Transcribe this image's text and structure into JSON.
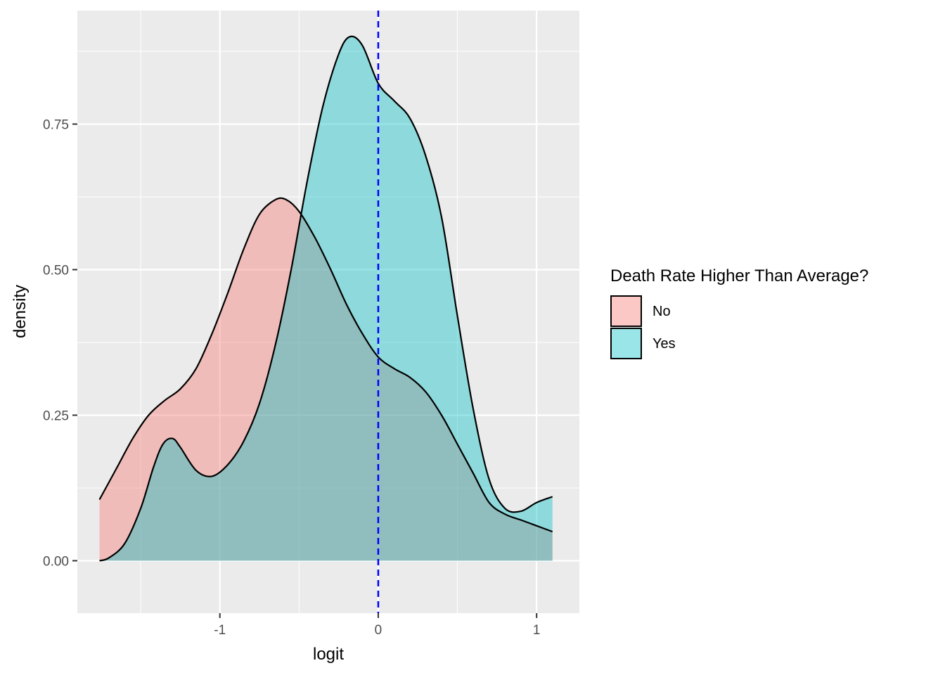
{
  "chart_data": {
    "type": "area",
    "xlabel": "logit",
    "ylabel": "density",
    "xlim": [
      -1.9,
      1.27
    ],
    "ylim": [
      -0.09,
      0.945
    ],
    "x_ticks": [
      -1,
      0,
      1
    ],
    "x_tick_labels": [
      "-1",
      "0",
      "1"
    ],
    "y_ticks": [
      0,
      0.25,
      0.5,
      0.75
    ],
    "y_tick_labels": [
      "0.00",
      "0.25",
      "0.50",
      "0.75"
    ],
    "grid": true,
    "legend": {
      "title": "Death Rate Higher Than Average?",
      "position": "right"
    },
    "reference_line": {
      "x": 0,
      "color": "#0000ff",
      "style": "dashed"
    },
    "series": [
      {
        "name": "No",
        "color": "#F8766D",
        "points": [
          [
            -1.76,
            0.105
          ],
          [
            -1.65,
            0.16
          ],
          [
            -1.55,
            0.21
          ],
          [
            -1.45,
            0.25
          ],
          [
            -1.35,
            0.275
          ],
          [
            -1.25,
            0.295
          ],
          [
            -1.15,
            0.33
          ],
          [
            -1.05,
            0.39
          ],
          [
            -0.95,
            0.46
          ],
          [
            -0.85,
            0.535
          ],
          [
            -0.75,
            0.595
          ],
          [
            -0.65,
            0.62
          ],
          [
            -0.58,
            0.62
          ],
          [
            -0.5,
            0.6
          ],
          [
            -0.4,
            0.555
          ],
          [
            -0.3,
            0.5
          ],
          [
            -0.2,
            0.44
          ],
          [
            -0.1,
            0.39
          ],
          [
            0.0,
            0.35
          ],
          [
            0.1,
            0.33
          ],
          [
            0.2,
            0.315
          ],
          [
            0.3,
            0.29
          ],
          [
            0.4,
            0.25
          ],
          [
            0.5,
            0.2
          ],
          [
            0.6,
            0.15
          ],
          [
            0.7,
            0.1
          ],
          [
            0.8,
            0.08
          ],
          [
            0.9,
            0.07
          ],
          [
            1.0,
            0.06
          ],
          [
            1.1,
            0.05
          ]
        ]
      },
      {
        "name": "Yes",
        "color": "#00BFC4",
        "points": [
          [
            -1.76,
            0.0
          ],
          [
            -1.7,
            0.005
          ],
          [
            -1.6,
            0.03
          ],
          [
            -1.5,
            0.09
          ],
          [
            -1.42,
            0.16
          ],
          [
            -1.36,
            0.2
          ],
          [
            -1.3,
            0.21
          ],
          [
            -1.25,
            0.195
          ],
          [
            -1.15,
            0.155
          ],
          [
            -1.05,
            0.145
          ],
          [
            -0.95,
            0.165
          ],
          [
            -0.85,
            0.205
          ],
          [
            -0.75,
            0.27
          ],
          [
            -0.65,
            0.37
          ],
          [
            -0.55,
            0.5
          ],
          [
            -0.45,
            0.65
          ],
          [
            -0.35,
            0.78
          ],
          [
            -0.25,
            0.87
          ],
          [
            -0.18,
            0.9
          ],
          [
            -0.1,
            0.885
          ],
          [
            0.0,
            0.82
          ],
          [
            0.1,
            0.79
          ],
          [
            0.2,
            0.76
          ],
          [
            0.3,
            0.695
          ],
          [
            0.4,
            0.59
          ],
          [
            0.5,
            0.42
          ],
          [
            0.6,
            0.26
          ],
          [
            0.7,
            0.14
          ],
          [
            0.8,
            0.09
          ],
          [
            0.9,
            0.085
          ],
          [
            1.0,
            0.1
          ],
          [
            1.1,
            0.11
          ]
        ]
      }
    ]
  }
}
